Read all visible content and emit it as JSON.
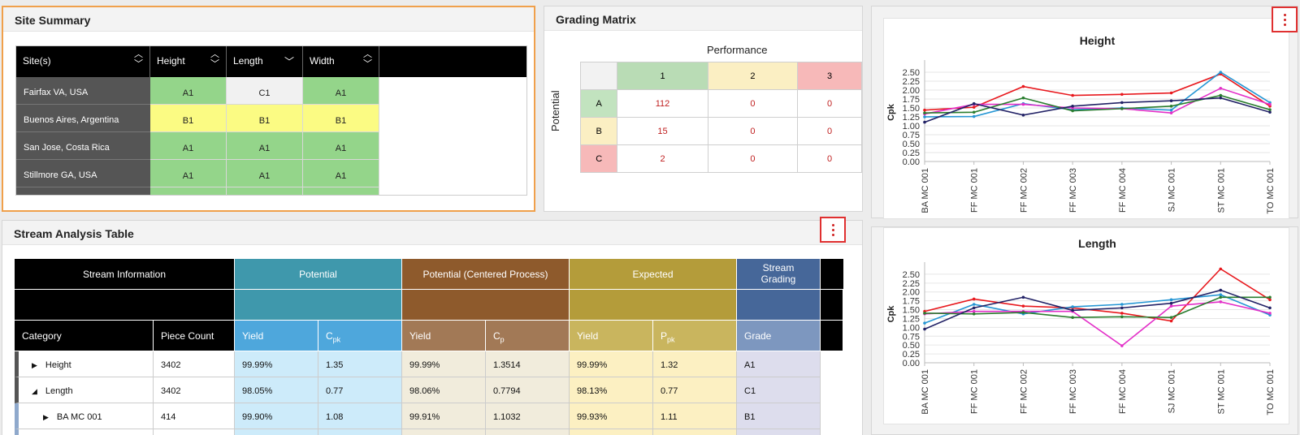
{
  "site_summary": {
    "title": "Site Summary",
    "columns": [
      "Site(s)",
      "Height",
      "Length",
      "Width"
    ],
    "rows": [
      {
        "site": "Fairfax VA, USA",
        "height": "A1",
        "length": "C1",
        "width": "A1"
      },
      {
        "site": "Buenos Aires, Argentina",
        "height": "B1",
        "length": "B1",
        "width": "B1"
      },
      {
        "site": "San Jose, Costa Rica",
        "height": "A1",
        "length": "A1",
        "width": "A1"
      },
      {
        "site": "Stillmore GA, USA",
        "height": "A1",
        "length": "A1",
        "width": "A1"
      }
    ]
  },
  "grading_matrix": {
    "title": "Grading Matrix",
    "performance_label": "Performance",
    "potential_label": "Potential",
    "columns": [
      "1",
      "2",
      "3"
    ],
    "rows": [
      {
        "label": "A",
        "values": [
          "112",
          "0",
          "0"
        ]
      },
      {
        "label": "B",
        "values": [
          "15",
          "0",
          "0"
        ]
      },
      {
        "label": "C",
        "values": [
          "2",
          "0",
          "0"
        ]
      }
    ],
    "colors": {
      "col1": "#b9dcb5",
      "col2": "#fbefc3",
      "col3": "#f7b9b9",
      "rowA": "#c2e3bf",
      "rowB": "#fbefc3",
      "rowC": "#f7b9b9"
    }
  },
  "stream_table": {
    "title": "Stream Analysis Table",
    "groups": {
      "info": "Stream Information",
      "potential": "Potential",
      "potential_centered": "Potential (Centered Process)",
      "expected": "Expected",
      "stream_grading": "Stream Grading"
    },
    "subheaders": {
      "category": "Category",
      "piece_count": "Piece Count",
      "yield": "Yield",
      "cpk_main": "C",
      "cpk_sub": "pk",
      "cp_main": "C",
      "cp_sub": "p",
      "ppk_main": "P",
      "ppk_sub": "pk",
      "grade": "Grade"
    },
    "rows": [
      {
        "category": "Height",
        "expand": "▶",
        "indent": 0,
        "piece_count": "3402",
        "pot_yield": "99.99%",
        "pot_cpk": "1.35",
        "potc_yield": "99.99%",
        "potc_cp": "1.3514",
        "exp_yield": "99.99%",
        "exp_ppk": "1.32",
        "grade": "A1"
      },
      {
        "category": "Length",
        "expand": "◢",
        "indent": 0,
        "piece_count": "3402",
        "pot_yield": "98.05%",
        "pot_cpk": "0.77",
        "potc_yield": "98.06%",
        "potc_cp": "0.7794",
        "exp_yield": "98.13%",
        "exp_ppk": "0.77",
        "grade": "C1"
      },
      {
        "category": "BA MC 001",
        "expand": "▶",
        "indent": 1,
        "piece_count": "414",
        "pot_yield": "99.90%",
        "pot_cpk": "1.08",
        "potc_yield": "99.91%",
        "potc_cp": "1.1032",
        "exp_yield": "99.93%",
        "exp_ppk": "1.11",
        "grade": "B1"
      }
    ]
  },
  "chart_data": [
    {
      "type": "line",
      "title": "Height",
      "ylabel": "Cpk",
      "xlabel": "",
      "ylim": [
        0,
        2.75
      ],
      "yticks": [
        "0.00",
        "0.25",
        "0.50",
        "0.75",
        "1.00",
        "1.25",
        "1.50",
        "1.75",
        "2.00",
        "2.25",
        "2.50"
      ],
      "categories": [
        "BA MC 001",
        "FF MC 001",
        "FF MC 002",
        "FF MC 003",
        "FF MC 004",
        "SJ MC 001",
        "ST MC 001",
        "TO MC 001"
      ],
      "grid": true,
      "series": [
        {
          "color": "#e8191e",
          "values": [
            1.44,
            1.52,
            2.1,
            1.85,
            1.88,
            1.92,
            2.45,
            1.55
          ]
        },
        {
          "color": "#2596d4",
          "values": [
            1.25,
            1.26,
            1.62,
            1.45,
            1.5,
            1.44,
            2.5,
            1.65
          ]
        },
        {
          "color": "#e32fc8",
          "values": [
            1.33,
            1.6,
            1.6,
            1.5,
            1.48,
            1.36,
            2.05,
            1.6
          ]
        },
        {
          "color": "#2a7d2e",
          "values": [
            1.36,
            1.38,
            1.78,
            1.42,
            1.48,
            1.55,
            1.85,
            1.45
          ]
        },
        {
          "color": "#222266",
          "values": [
            1.1,
            1.62,
            1.3,
            1.55,
            1.65,
            1.7,
            1.78,
            1.38
          ]
        }
      ]
    },
    {
      "type": "line",
      "title": "Length",
      "ylabel": "Cpk",
      "xlabel": "",
      "ylim": [
        0,
        2.75
      ],
      "yticks": [
        "0.00",
        "0.25",
        "0.50",
        "0.75",
        "1.00",
        "1.25",
        "1.50",
        "1.75",
        "2.00",
        "2.25",
        "2.50"
      ],
      "categories": [
        "BA MC 001",
        "FF MC 001",
        "FF MC 002",
        "FF MC 003",
        "FF MC 004",
        "SJ MC 001",
        "ST MC 001",
        "TO MC 001"
      ],
      "grid": true,
      "series": [
        {
          "color": "#e8191e",
          "values": [
            1.45,
            1.8,
            1.6,
            1.55,
            1.4,
            1.18,
            2.65,
            1.78
          ]
        },
        {
          "color": "#2596d4",
          "values": [
            1.12,
            1.65,
            1.38,
            1.58,
            1.65,
            1.78,
            1.92,
            1.35
          ]
        },
        {
          "color": "#e32fc8",
          "values": [
            1.38,
            1.45,
            1.45,
            1.45,
            0.48,
            1.6,
            1.72,
            1.4
          ]
        },
        {
          "color": "#2a7d2e",
          "values": [
            1.4,
            1.38,
            1.42,
            1.28,
            1.3,
            1.28,
            1.85,
            1.85
          ]
        },
        {
          "color": "#222266",
          "values": [
            0.95,
            1.55,
            1.85,
            1.48,
            1.55,
            1.68,
            2.05,
            1.55
          ]
        }
      ]
    }
  ]
}
